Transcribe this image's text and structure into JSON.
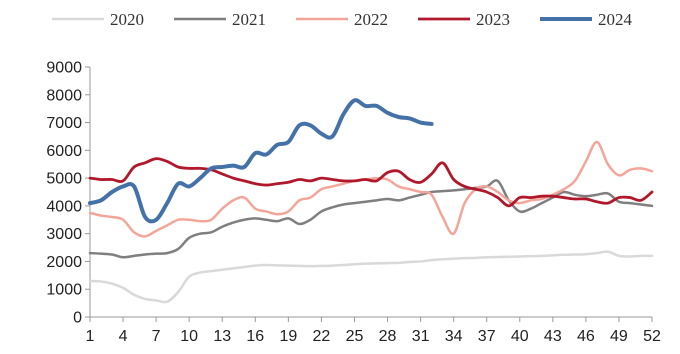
{
  "chart_data": {
    "type": "line",
    "title": "",
    "xlabel": "",
    "ylabel": "",
    "x_tick_labels": [
      "1",
      "4",
      "7",
      "10",
      "13",
      "16",
      "19",
      "22",
      "25",
      "28",
      "31",
      "34",
      "37",
      "40",
      "43",
      "46",
      "49",
      "52"
    ],
    "y_tick_labels": [
      "0",
      "1000",
      "2000",
      "3000",
      "4000",
      "5000",
      "6000",
      "7000",
      "8000",
      "9000"
    ],
    "xlim": [
      1,
      52
    ],
    "ylim": [
      0,
      9000
    ],
    "grid": false,
    "legend_position": "top",
    "series": [
      {
        "name": "2020",
        "color": "#d9d9d9",
        "width": 2.5,
        "x": [
          1,
          2,
          3,
          4,
          5,
          6,
          7,
          8,
          9,
          10,
          11,
          12,
          13,
          14,
          15,
          16,
          17,
          18,
          19,
          20,
          21,
          22,
          23,
          24,
          25,
          26,
          27,
          28,
          29,
          30,
          31,
          32,
          33,
          34,
          35,
          36,
          37,
          38,
          39,
          40,
          41,
          42,
          43,
          44,
          45,
          46,
          47,
          48,
          49,
          50,
          51,
          52
        ],
        "values": [
          1300,
          1280,
          1200,
          1050,
          800,
          650,
          600,
          550,
          900,
          1450,
          1600,
          1650,
          1700,
          1750,
          1800,
          1850,
          1870,
          1860,
          1850,
          1840,
          1830,
          1840,
          1850,
          1870,
          1900,
          1920,
          1930,
          1940,
          1950,
          1980,
          2000,
          2050,
          2080,
          2100,
          2120,
          2130,
          2150,
          2160,
          2170,
          2180,
          2190,
          2200,
          2220,
          2240,
          2250,
          2260,
          2300,
          2350,
          2200,
          2180,
          2200,
          2200
        ]
      },
      {
        "name": "2021",
        "color": "#7f7f7f",
        "width": 2.5,
        "x": [
          1,
          2,
          3,
          4,
          5,
          6,
          7,
          8,
          9,
          10,
          11,
          12,
          13,
          14,
          15,
          16,
          17,
          18,
          19,
          20,
          21,
          22,
          23,
          24,
          25,
          26,
          27,
          28,
          29,
          30,
          31,
          32,
          33,
          34,
          35,
          36,
          37,
          38,
          39,
          40,
          41,
          42,
          43,
          44,
          45,
          46,
          47,
          48,
          49,
          50,
          51,
          52
        ],
        "values": [
          2300,
          2280,
          2250,
          2150,
          2200,
          2250,
          2280,
          2300,
          2450,
          2850,
          3000,
          3050,
          3250,
          3400,
          3500,
          3550,
          3500,
          3450,
          3550,
          3350,
          3500,
          3800,
          3950,
          4050,
          4100,
          4150,
          4200,
          4250,
          4200,
          4300,
          4400,
          4500,
          4530,
          4560,
          4600,
          4650,
          4700,
          4900,
          4200,
          3800,
          3900,
          4100,
          4300,
          4500,
          4400,
          4350,
          4400,
          4450,
          4150,
          4100,
          4050,
          4000
        ]
      },
      {
        "name": "2022",
        "color": "#f4a59a",
        "width": 2.5,
        "x": [
          1,
          2,
          3,
          4,
          5,
          6,
          7,
          8,
          9,
          10,
          11,
          12,
          13,
          14,
          15,
          16,
          17,
          18,
          19,
          20,
          21,
          22,
          23,
          24,
          25,
          26,
          27,
          28,
          29,
          30,
          31,
          32,
          33,
          34,
          35,
          36,
          37,
          38,
          39,
          40,
          41,
          42,
          43,
          44,
          45,
          46,
          47,
          48,
          49,
          50,
          51,
          52
        ],
        "values": [
          3750,
          3650,
          3600,
          3500,
          3050,
          2900,
          3100,
          3300,
          3500,
          3500,
          3450,
          3500,
          3900,
          4200,
          4300,
          3900,
          3800,
          3700,
          3800,
          4200,
          4300,
          4600,
          4700,
          4800,
          4900,
          4950,
          5000,
          4950,
          4700,
          4600,
          4500,
          4400,
          3600,
          3000,
          4100,
          4600,
          4700,
          4500,
          4200,
          4100,
          4200,
          4250,
          4400,
          4600,
          4900,
          5600,
          6300,
          5500,
          5100,
          5300,
          5350,
          5250
        ]
      },
      {
        "name": "2023",
        "color": "#b2182b",
        "width": 2.8,
        "x": [
          1,
          2,
          3,
          4,
          5,
          6,
          7,
          8,
          9,
          10,
          11,
          12,
          13,
          14,
          15,
          16,
          17,
          18,
          19,
          20,
          21,
          22,
          23,
          24,
          25,
          26,
          27,
          28,
          29,
          30,
          31,
          32,
          33,
          34,
          35,
          36,
          37,
          38,
          39,
          40,
          41,
          42,
          43,
          44,
          45,
          46,
          47,
          48,
          49,
          50,
          51,
          52
        ],
        "values": [
          5000,
          4950,
          4950,
          4900,
          5400,
          5550,
          5700,
          5600,
          5400,
          5350,
          5350,
          5300,
          5150,
          5000,
          4900,
          4800,
          4750,
          4800,
          4850,
          4950,
          4900,
          5000,
          4950,
          4900,
          4900,
          4950,
          4900,
          5200,
          5250,
          4950,
          4850,
          5150,
          5550,
          4950,
          4700,
          4600,
          4500,
          4300,
          4000,
          4300,
          4300,
          4350,
          4350,
          4300,
          4250,
          4250,
          4150,
          4100,
          4300,
          4300,
          4200,
          4500
        ]
      },
      {
        "name": "2024",
        "color": "#4472a8",
        "width": 4,
        "x": [
          1,
          2,
          3,
          4,
          5,
          6,
          7,
          8,
          9,
          10,
          11,
          12,
          13,
          14,
          15,
          16,
          17,
          18,
          19,
          20,
          21,
          22,
          23,
          24,
          25,
          26,
          27,
          28,
          29,
          30,
          31,
          32
        ],
        "values": [
          4100,
          4200,
          4500,
          4700,
          4700,
          3600,
          3500,
          4100,
          4800,
          4700,
          5000,
          5350,
          5400,
          5450,
          5400,
          5900,
          5850,
          6200,
          6300,
          6900,
          6900,
          6600,
          6500,
          7300,
          7800,
          7600,
          7600,
          7350,
          7200,
          7150,
          7000,
          6950
        ]
      }
    ]
  }
}
